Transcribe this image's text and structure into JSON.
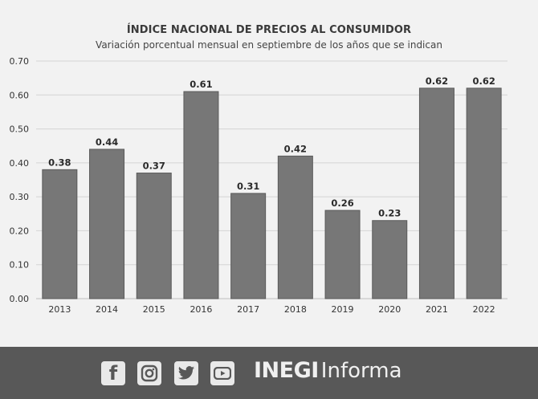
{
  "chart_data": {
    "type": "bar",
    "title": "ÍNDICE NACIONAL DE PRECIOS AL CONSUMIDOR",
    "subtitle": "Variación porcentual mensual en septiembre de los años que se indican",
    "categories": [
      "2013",
      "2014",
      "2015",
      "2016",
      "2017",
      "2018",
      "2019",
      "2020",
      "2021",
      "2022"
    ],
    "values": [
      0.38,
      0.44,
      0.37,
      0.61,
      0.31,
      0.42,
      0.26,
      0.23,
      0.62,
      0.62
    ],
    "labels": [
      "0.38",
      "0.44",
      "0.37",
      "0.61",
      "0.31",
      "0.42",
      "0.26",
      "0.23",
      "0.62",
      "0.62"
    ],
    "ylim": [
      0,
      0.7
    ],
    "yticks": [
      "0.00",
      "0.10",
      "0.20",
      "0.30",
      "0.40",
      "0.50",
      "0.60",
      "0.70"
    ],
    "xlabel": "",
    "ylabel": "",
    "grid": true,
    "bar_color": "#777777"
  },
  "footer": {
    "brand_bold": "INEGI",
    "brand_regular": "Informa",
    "social_icons": [
      "facebook-icon",
      "instagram-icon",
      "twitter-icon",
      "youtube-icon"
    ],
    "facebook_glyph": "f",
    "background": "#585858"
  }
}
